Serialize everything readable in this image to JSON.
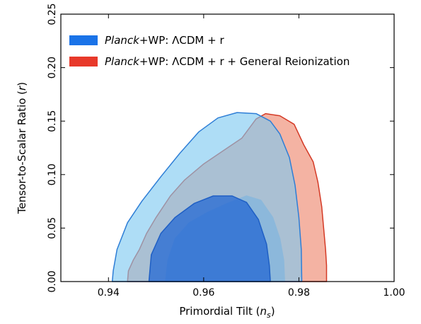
{
  "chart_data": {
    "type": "area",
    "xlabel": {
      "main": "Primordial Tilt (",
      "sym": "n",
      "sub": "s",
      "close": ")"
    },
    "ylabel": {
      "main": "Tensor-to-Scalar Ratio (",
      "sym": "r",
      "close": ")"
    },
    "xlim": [
      0.93,
      1.0
    ],
    "ylim": [
      0.0,
      0.25
    ],
    "xticks": [
      0.94,
      0.96,
      0.98,
      1.0
    ],
    "xtick_labels": [
      "0.94",
      "0.96",
      "0.98",
      "1.00"
    ],
    "yticks": [
      0.0,
      0.05,
      0.1,
      0.15,
      0.2,
      0.25
    ],
    "ytick_labels": [
      "0.00",
      "0.05",
      "0.10",
      "0.15",
      "0.20",
      "0.25"
    ],
    "grid": false,
    "legend_position": "top-left",
    "legend": [
      {
        "italic": "Planck",
        "rest": "+WP: ΛCDM + r",
        "color": "#1a73e8"
      },
      {
        "italic": "Planck",
        "rest": "+WP: ΛCDM + r + General Reionization",
        "color": "#e8392a"
      }
    ],
    "series": [
      {
        "name": "Planck+WP: ΛCDM + r + General Reionization",
        "contour": "95%",
        "fill": "#f4b3a3",
        "stroke": "#d43a26",
        "points": [
          [
            0.944,
            0.0
          ],
          [
            0.9442,
            0.01
          ],
          [
            0.9452,
            0.02
          ],
          [
            0.9465,
            0.03
          ],
          [
            0.948,
            0.045
          ],
          [
            0.95,
            0.06
          ],
          [
            0.953,
            0.08
          ],
          [
            0.956,
            0.095
          ],
          [
            0.96,
            0.11
          ],
          [
            0.964,
            0.122
          ],
          [
            0.968,
            0.134
          ],
          [
            0.971,
            0.152
          ],
          [
            0.973,
            0.157
          ],
          [
            0.976,
            0.155
          ],
          [
            0.979,
            0.147
          ],
          [
            0.981,
            0.128
          ],
          [
            0.983,
            0.112
          ],
          [
            0.984,
            0.093
          ],
          [
            0.9848,
            0.07
          ],
          [
            0.9852,
            0.05
          ],
          [
            0.9856,
            0.03
          ],
          [
            0.9858,
            0.015
          ],
          [
            0.9858,
            0.0
          ]
        ]
      },
      {
        "name": "Planck+WP: ΛCDM + r + General Reionization",
        "contour": "68%",
        "fill": "#a79fb8",
        "stroke": "#a79fb8",
        "points": [
          [
            0.952,
            0.0
          ],
          [
            0.9525,
            0.02
          ],
          [
            0.954,
            0.04
          ],
          [
            0.957,
            0.055
          ],
          [
            0.961,
            0.065
          ],
          [
            0.965,
            0.073
          ],
          [
            0.969,
            0.08
          ],
          [
            0.972,
            0.076
          ],
          [
            0.9745,
            0.06
          ],
          [
            0.976,
            0.04
          ],
          [
            0.9768,
            0.02
          ],
          [
            0.977,
            0.0
          ]
        ]
      },
      {
        "name": "Planck+WP: ΛCDM + r",
        "contour": "95%",
        "fill": "rgba(125,200,240,0.62)",
        "stroke": "#2e7ed6",
        "points": [
          [
            0.9408,
            0.0
          ],
          [
            0.941,
            0.01
          ],
          [
            0.9418,
            0.03
          ],
          [
            0.944,
            0.055
          ],
          [
            0.947,
            0.075
          ],
          [
            0.951,
            0.098
          ],
          [
            0.955,
            0.12
          ],
          [
            0.959,
            0.14
          ],
          [
            0.963,
            0.153
          ],
          [
            0.967,
            0.158
          ],
          [
            0.971,
            0.157
          ],
          [
            0.974,
            0.15
          ],
          [
            0.976,
            0.138
          ],
          [
            0.978,
            0.116
          ],
          [
            0.9792,
            0.09
          ],
          [
            0.98,
            0.06
          ],
          [
            0.9805,
            0.03
          ],
          [
            0.9806,
            0.0
          ]
        ]
      },
      {
        "name": "Planck+WP: ΛCDM + r",
        "contour": "68%",
        "fill": "rgba(30,100,210,0.72)",
        "stroke": "#1f5fc4",
        "points": [
          [
            0.9485,
            0.0
          ],
          [
            0.949,
            0.025
          ],
          [
            0.951,
            0.045
          ],
          [
            0.954,
            0.06
          ],
          [
            0.958,
            0.073
          ],
          [
            0.962,
            0.08
          ],
          [
            0.966,
            0.08
          ],
          [
            0.969,
            0.074
          ],
          [
            0.9715,
            0.058
          ],
          [
            0.9732,
            0.035
          ],
          [
            0.9738,
            0.015
          ],
          [
            0.974,
            0.0
          ]
        ]
      }
    ]
  }
}
